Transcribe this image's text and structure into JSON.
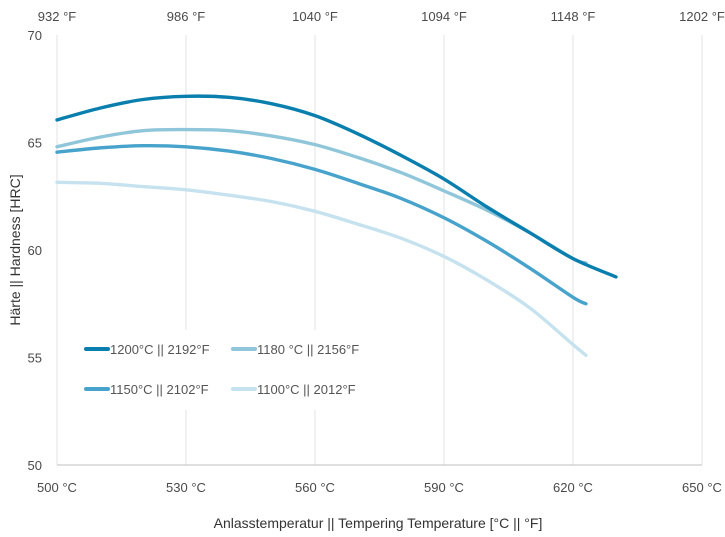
{
  "chart_data": {
    "type": "line",
    "xlabel": "Anlasstemperatur || Tempering Temperature [°C || °F]",
    "ylabel": "Härte || Hardness [HRC]",
    "xlim": [
      500,
      650
    ],
    "ylim": [
      50,
      70
    ],
    "x_ticks": [
      "500 °C",
      "530 °C",
      "560 °C",
      "590 °C",
      "620 °C",
      "650 °C"
    ],
    "x_tick_values": [
      500,
      530,
      560,
      590,
      620,
      650
    ],
    "x2_ticks": [
      "932 °F",
      "986 °F",
      "1040 °F",
      "1094 °F",
      "1148 °F",
      "1202 °F"
    ],
    "y_ticks": [
      "50",
      "55",
      "60",
      "65",
      "70"
    ],
    "y_tick_values": [
      50,
      55,
      60,
      65,
      70
    ],
    "grid": "vertical",
    "legend_position": "bottom-left inside",
    "series": [
      {
        "name": "1200°C || 2192°F",
        "color": "#0a7fae",
        "width": 3.4,
        "points": [
          [
            500,
            66.05
          ],
          [
            510,
            66.6
          ],
          [
            520,
            67.0
          ],
          [
            530,
            67.15
          ],
          [
            540,
            67.1
          ],
          [
            550,
            66.8
          ],
          [
            560,
            66.25
          ],
          [
            570,
            65.4
          ],
          [
            580,
            64.4
          ],
          [
            590,
            63.3
          ],
          [
            600,
            62.0
          ],
          [
            610,
            60.8
          ],
          [
            620,
            59.6
          ],
          [
            630,
            58.75
          ]
        ]
      },
      {
        "name": "1180 °C || 2156°F",
        "color": "#90c6da",
        "width": 3.4,
        "points": [
          [
            500,
            64.8
          ],
          [
            510,
            65.25
          ],
          [
            520,
            65.55
          ],
          [
            530,
            65.6
          ],
          [
            540,
            65.55
          ],
          [
            550,
            65.3
          ],
          [
            560,
            64.9
          ],
          [
            570,
            64.3
          ],
          [
            580,
            63.6
          ],
          [
            590,
            62.75
          ],
          [
            600,
            61.85
          ],
          [
            610,
            60.8
          ],
          [
            620,
            59.6
          ],
          [
            623,
            59.4
          ]
        ]
      },
      {
        "name": "1150°C || 2102°F",
        "color": "#48a3cc",
        "width": 3.4,
        "points": [
          [
            500,
            64.55
          ],
          [
            510,
            64.75
          ],
          [
            520,
            64.85
          ],
          [
            530,
            64.8
          ],
          [
            540,
            64.6
          ],
          [
            550,
            64.25
          ],
          [
            560,
            63.75
          ],
          [
            570,
            63.1
          ],
          [
            580,
            62.4
          ],
          [
            590,
            61.5
          ],
          [
            600,
            60.4
          ],
          [
            610,
            59.15
          ],
          [
            620,
            57.8
          ],
          [
            623,
            57.5
          ]
        ]
      },
      {
        "name": "1100°C || 2012°F",
        "color": "#c6e2ef",
        "width": 3.4,
        "points": [
          [
            500,
            63.15
          ],
          [
            510,
            63.1
          ],
          [
            520,
            62.95
          ],
          [
            530,
            62.8
          ],
          [
            540,
            62.55
          ],
          [
            550,
            62.25
          ],
          [
            560,
            61.8
          ],
          [
            570,
            61.2
          ],
          [
            580,
            60.55
          ],
          [
            590,
            59.7
          ],
          [
            600,
            58.6
          ],
          [
            610,
            57.3
          ],
          [
            620,
            55.6
          ],
          [
            623,
            55.1
          ]
        ]
      }
    ]
  }
}
